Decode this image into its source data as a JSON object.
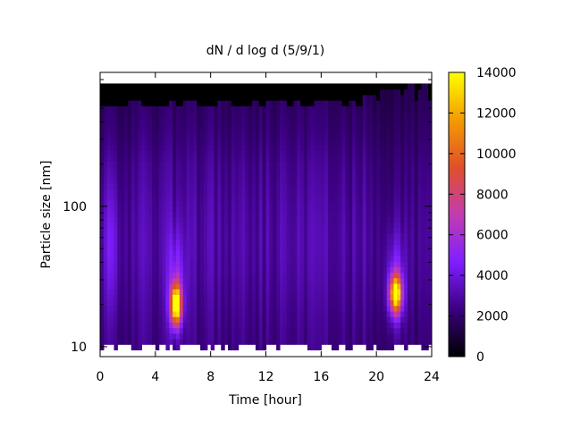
{
  "chart_data": {
    "type": "heatmap",
    "title": "dN / d log d (5/9/1)",
    "xlabel": "Time [hour]",
    "ylabel": "Particle size [nm]",
    "xlim": [
      0,
      24
    ],
    "ylim": [
      8.5,
      900
    ],
    "yscale": "log",
    "x_ticks": [
      "0",
      "4",
      "8",
      "12",
      "16",
      "20",
      "24"
    ],
    "x_tick_values": [
      0,
      4,
      8,
      12,
      16,
      20,
      24
    ],
    "y_ticks": [
      "10",
      "100"
    ],
    "y_tick_values": [
      10,
      100
    ],
    "y_minor_ticks": [
      20,
      30,
      40,
      50,
      60,
      70,
      80,
      90,
      200,
      300,
      400,
      500,
      600,
      700,
      800
    ],
    "colorbar": {
      "range": [
        0,
        14000
      ],
      "ticks": [
        "0",
        "2000",
        "4000",
        "6000",
        "8000",
        "10000",
        "12000",
        "14000"
      ],
      "tick_values": [
        0,
        2000,
        4000,
        6000,
        8000,
        10000,
        12000,
        14000
      ],
      "palette": [
        "#000000",
        "#3b0080",
        "#7f1fff",
        "#c23cb0",
        "#e0502a",
        "#f39c00",
        "#ffff00"
      ]
    },
    "features": [
      {
        "hour": 5.5,
        "size_nm": 20,
        "peak": 12600
      },
      {
        "hour": 21.4,
        "size_nm": 24,
        "peak": 11400
      }
    ],
    "data_range": {
      "x": [
        0,
        24
      ],
      "y": [
        9.5,
        750
      ]
    },
    "grid": false,
    "legend": "colorbar-right"
  }
}
